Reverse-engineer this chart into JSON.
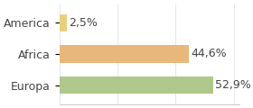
{
  "categories": [
    "America",
    "Africa",
    "Europa"
  ],
  "values": [
    2.5,
    44.6,
    52.9
  ],
  "bar_colors": [
    "#e8d07a",
    "#e8b87a",
    "#aec98a"
  ],
  "label_texts": [
    "2,5%",
    "44,6%",
    "52,9%"
  ],
  "xlim": [
    0,
    62
  ],
  "background_color": "#ffffff",
  "label_fontsize": 9,
  "tick_fontsize": 9,
  "bar_height": 0.55
}
